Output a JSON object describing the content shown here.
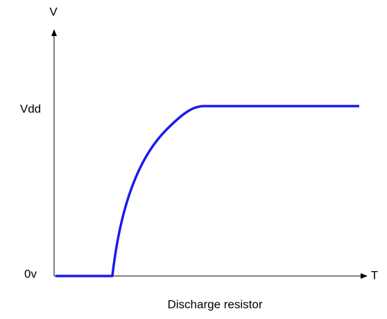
{
  "axes": {
    "y_label": "V",
    "x_label": "T"
  },
  "levels": {
    "high": "Vdd",
    "low": "0v"
  },
  "caption": "Discharge resistor"
}
